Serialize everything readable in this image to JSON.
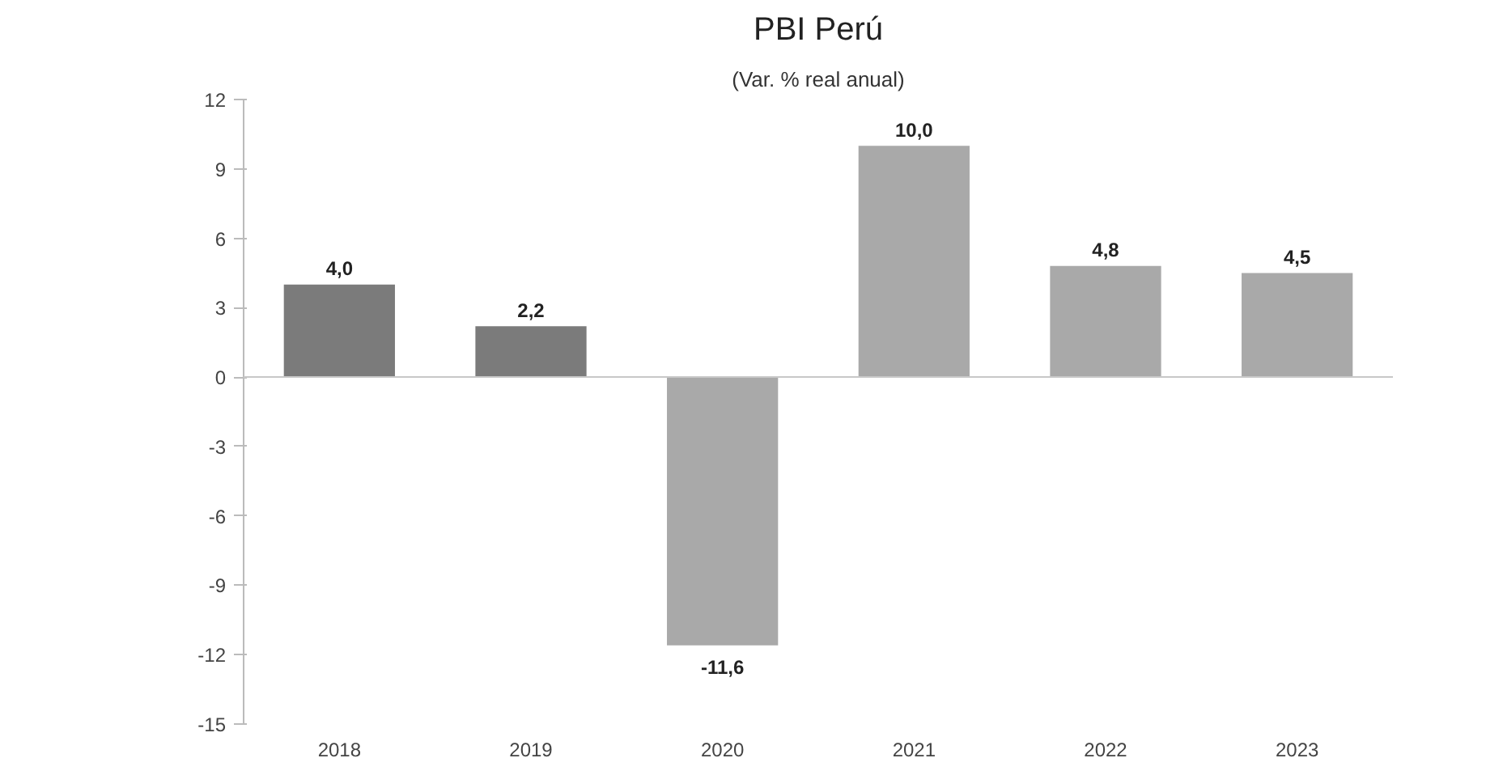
{
  "chart_data": {
    "type": "bar",
    "title": "PBI Perú",
    "subtitle": "(Var. % real anual)",
    "categories": [
      "2018",
      "2019",
      "2020",
      "2021",
      "2022",
      "2023"
    ],
    "values": [
      4.0,
      2.2,
      -11.6,
      10.0,
      4.8,
      4.5
    ],
    "colors": [
      "#7b7b7b",
      "#7b7b7b",
      "#a9a9a9",
      "#a9a9a9",
      "#a9a9a9",
      "#a9a9a9"
    ],
    "value_labels": [
      "4,0",
      "2,2",
      "-11,6",
      "10,0",
      "4,8",
      "4,5"
    ],
    "ylim": [
      -15,
      12
    ],
    "yticks": [
      -15,
      -12,
      -9,
      -6,
      -3,
      0,
      3,
      6,
      9,
      12
    ],
    "ref_lines": [
      {
        "axis": "y",
        "value": 0,
        "color": "#c8c8c8"
      }
    ],
    "grid": false
  }
}
